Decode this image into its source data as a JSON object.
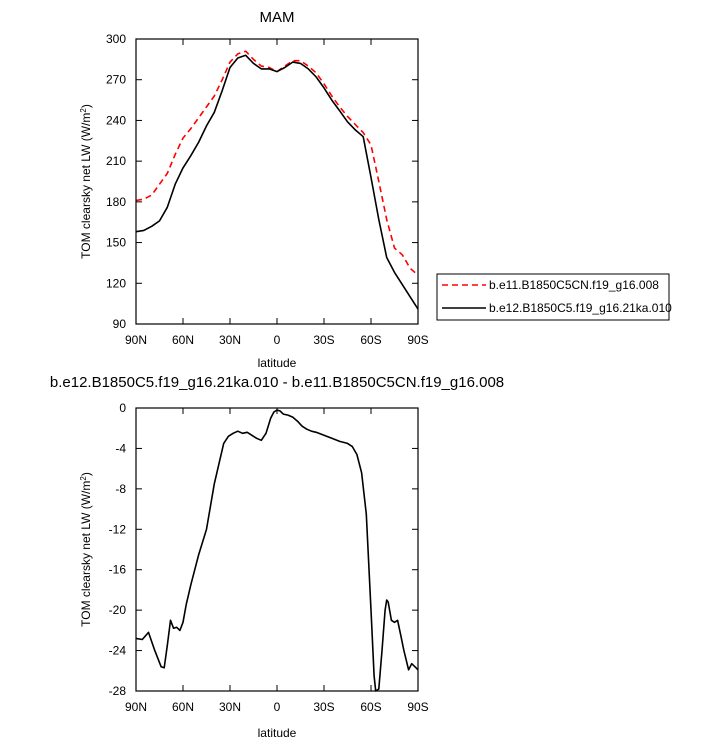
{
  "chart_data": [
    {
      "type": "line",
      "title": "MAM",
      "xlabel": "latitude",
      "ylabel": "TOM clearsky net LW (W/m",
      "ylabel_sup": "2",
      "ylabel_close": ")",
      "xlim": [
        90,
        -90
      ],
      "ylim": [
        90,
        300
      ],
      "xticks": [
        90,
        60,
        30,
        0,
        -30,
        -60,
        -90
      ],
      "xtick_labels": [
        "90N",
        "60N",
        "30N",
        "0",
        "30S",
        "60S",
        "90S"
      ],
      "yticks": [
        90,
        120,
        150,
        180,
        210,
        240,
        270,
        300
      ],
      "ytick_labels": [
        "90",
        "120",
        "150",
        "180",
        "210",
        "240",
        "270",
        "300"
      ],
      "legend_position": "right",
      "x": [
        90,
        85,
        80,
        75,
        70,
        65,
        60,
        55,
        50,
        45,
        40,
        35,
        30,
        25,
        20,
        15,
        10,
        5,
        0,
        -5,
        -10,
        -15,
        -20,
        -25,
        -30,
        -35,
        -40,
        -45,
        -50,
        -55,
        -60,
        -65,
        -70,
        -75,
        -80,
        -85,
        -90
      ],
      "series": [
        {
          "name": "b.e11.B1850C5CN.f19_g16.008",
          "color": "#ff0000",
          "dash": "dashed",
          "values": [
            181,
            182,
            185,
            193,
            201,
            215,
            227,
            234,
            242,
            250,
            258,
            270,
            283,
            289,
            291,
            285,
            280,
            279,
            276,
            280,
            284,
            284,
            280,
            275,
            267,
            258,
            250,
            243,
            237,
            231,
            222,
            195,
            167,
            146,
            141,
            131,
            126
          ]
        },
        {
          "name": "b.e12.B1850C5.f19_g16.21ka.010",
          "color": "#000000",
          "dash": "solid",
          "values": [
            158,
            159,
            162,
            166,
            176,
            193,
            205,
            214,
            224,
            236,
            246,
            262,
            279,
            286,
            288,
            282,
            278,
            278,
            276,
            279,
            283,
            282,
            278,
            272,
            264,
            255,
            247,
            239,
            233,
            228,
            198,
            167,
            139,
            128,
            119,
            110,
            101
          ]
        }
      ]
    },
    {
      "type": "line",
      "title": "b.e12.B1850C5.f19_g16.21ka.010 - b.e11.B1850C5CN.f19_g16.008",
      "xlabel": "latitude",
      "ylabel": "TOM clearsky net LW (W/m",
      "ylabel_sup": "2",
      "ylabel_close": ")",
      "xlim": [
        90,
        -90
      ],
      "ylim": [
        -28,
        0
      ],
      "xticks": [
        90,
        60,
        30,
        0,
        -30,
        -60,
        -90
      ],
      "xtick_labels": [
        "90N",
        "60N",
        "30N",
        "0",
        "30S",
        "60S",
        "90S"
      ],
      "yticks": [
        0,
        -4,
        -8,
        -12,
        -16,
        -20,
        -24,
        -28
      ],
      "ytick_labels": [
        "0",
        "-4",
        "-8",
        "-12",
        "-16",
        "-20",
        "-24",
        "-28"
      ],
      "x": [
        90,
        86,
        82,
        78,
        74,
        72,
        70,
        68,
        66,
        64,
        62,
        60,
        58,
        55,
        50,
        45,
        40,
        37,
        34,
        31,
        28,
        25,
        22,
        19,
        16,
        13,
        10,
        7,
        4,
        2,
        0,
        -2,
        -4,
        -7,
        -10,
        -13,
        -16,
        -19,
        -22,
        -25,
        -30,
        -35,
        -40,
        -45,
        -48,
        -51,
        -54,
        -57,
        -60,
        -62,
        -63,
        -65,
        -67,
        -69,
        -70,
        -71,
        -73,
        -75,
        -77,
        -79,
        -81,
        -84,
        -86,
        -88,
        -90
      ],
      "series": [
        {
          "name": "",
          "color": "#000000",
          "dash": "solid",
          "values": [
            -22.8,
            -22.9,
            -22.2,
            -24.0,
            -25.6,
            -25.7,
            -23.5,
            -21.0,
            -21.8,
            -21.7,
            -22.0,
            -21.2,
            -19.5,
            -17.5,
            -14.5,
            -12.0,
            -7.5,
            -5.5,
            -3.5,
            -2.8,
            -2.5,
            -2.3,
            -2.5,
            -2.4,
            -2.7,
            -3.0,
            -3.2,
            -2.5,
            -1.0,
            -0.4,
            -0.2,
            -0.3,
            -0.6,
            -0.7,
            -0.9,
            -1.3,
            -1.8,
            -2.1,
            -2.3,
            -2.4,
            -2.7,
            -3.0,
            -3.3,
            -3.5,
            -3.8,
            -4.6,
            -6.4,
            -10.5,
            -20.0,
            -26.5,
            -28.0,
            -27.8,
            -24.0,
            -20.0,
            -19.0,
            -19.2,
            -21.0,
            -21.2,
            -21.0,
            -22.5,
            -24.0,
            -25.9,
            -25.3,
            -25.6,
            -25.9
          ]
        }
      ]
    }
  ]
}
